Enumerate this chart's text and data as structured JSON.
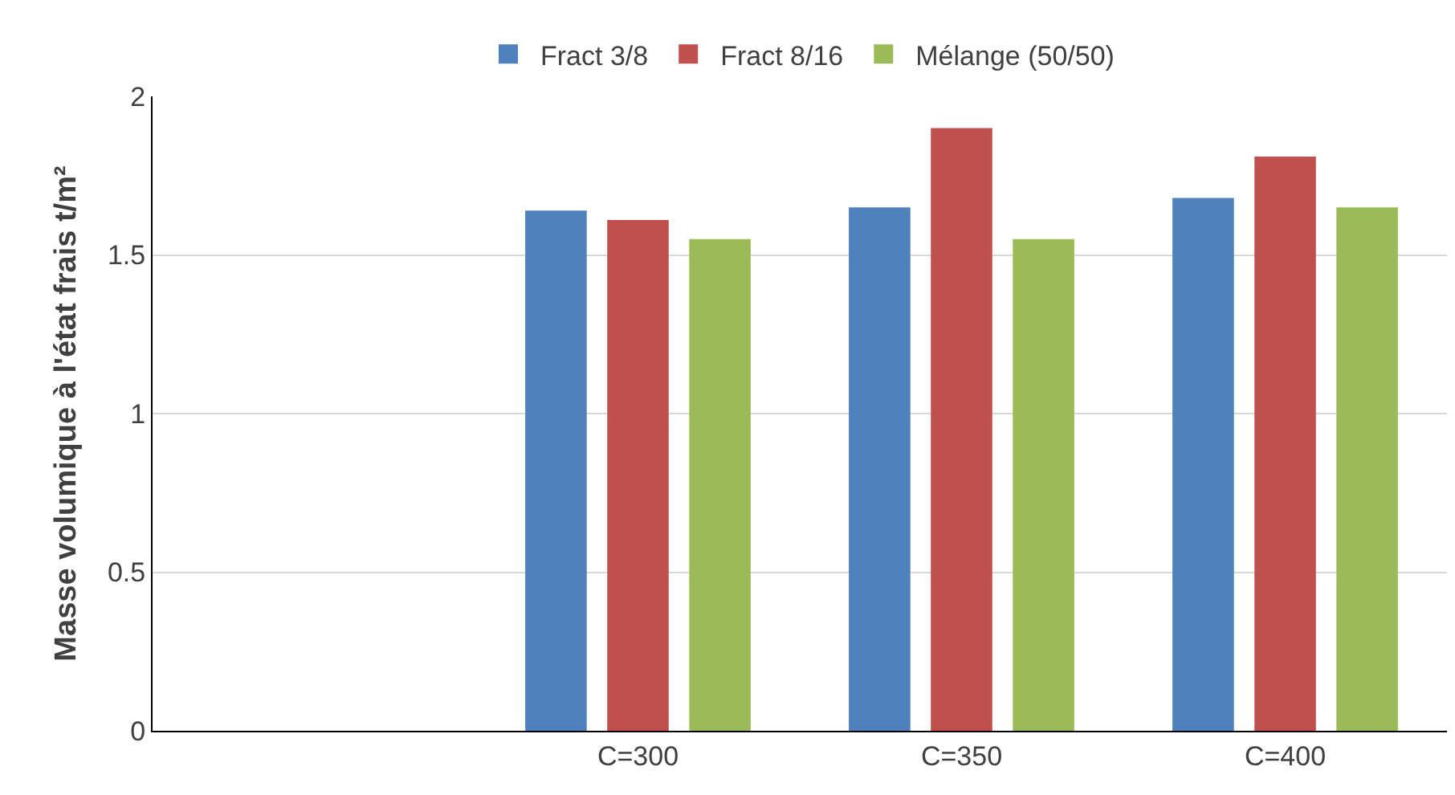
{
  "chart_data": {
    "type": "bar",
    "ylabel": "Masse volumique à l'état frais t/m²",
    "categories": [
      null,
      "C=300",
      "C=350",
      "C=400"
    ],
    "series": [
      {
        "name": "Fract 3/8",
        "color": "#4f81bd",
        "values": [
          null,
          1.64,
          1.65,
          1.68
        ]
      },
      {
        "name": "Fract 8/16",
        "color": "#c0504d",
        "values": [
          null,
          1.61,
          1.9,
          1.81
        ]
      },
      {
        "name": "Mélange (50/50)",
        "color": "#9bbb59",
        "values": [
          null,
          1.55,
          1.55,
          1.65
        ]
      }
    ],
    "ylim": [
      0,
      2
    ],
    "yticks": [
      0,
      0.5,
      1,
      1.5,
      2
    ],
    "grid": "y",
    "legend": "top"
  }
}
